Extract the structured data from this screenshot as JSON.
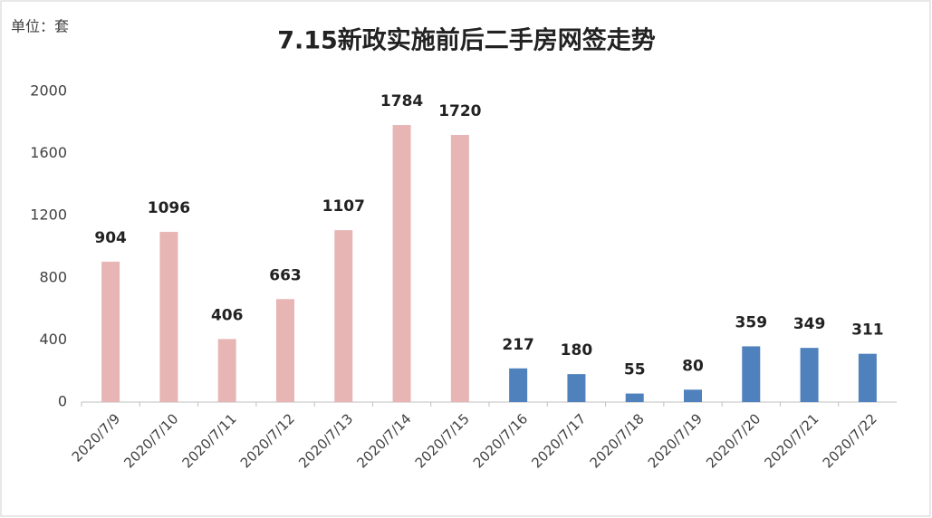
{
  "chart_data": {
    "type": "bar",
    "title": "7.15新政实施前后二手房网签走势",
    "unit_label": "单位：套",
    "categories": [
      "2020/7/9",
      "2020/7/10",
      "2020/7/11",
      "2020/7/12",
      "2020/7/13",
      "2020/7/14",
      "2020/7/15",
      "2020/7/16",
      "2020/7/17",
      "2020/7/18",
      "2020/7/19",
      "2020/7/20",
      "2020/7/21",
      "2020/7/22"
    ],
    "values": [
      904,
      1096,
      406,
      663,
      1107,
      1784,
      1720,
      217,
      180,
      55,
      80,
      359,
      349,
      311
    ],
    "colors": [
      "#e8b5b5",
      "#e8b5b5",
      "#e8b5b5",
      "#e8b5b5",
      "#e8b5b5",
      "#e8b5b5",
      "#e8b5b5",
      "#4f81bd",
      "#4f81bd",
      "#4f81bd",
      "#4f81bd",
      "#4f81bd",
      "#4f81bd",
      "#4f81bd"
    ],
    "ylim": [
      0,
      2000
    ],
    "yticks": [
      0,
      400,
      800,
      1200,
      1600,
      2000
    ],
    "grid": false
  }
}
